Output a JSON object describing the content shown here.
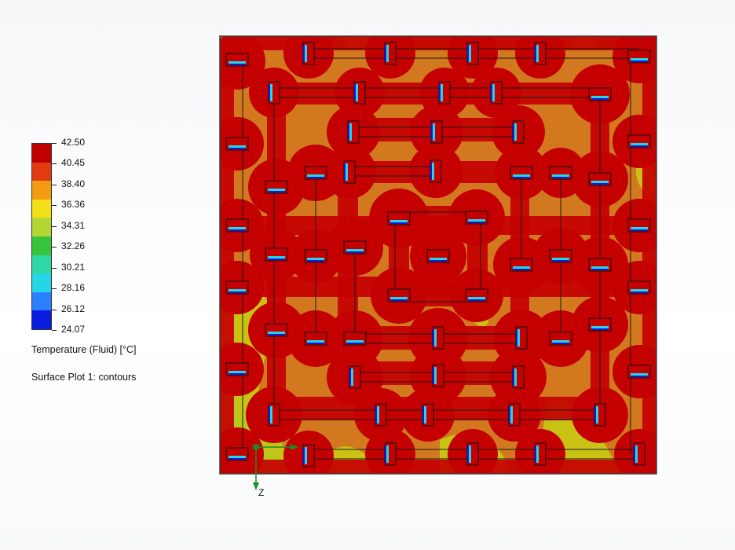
{
  "chart_data": {
    "type": "heatmap",
    "plot_kind": "surface contour plot",
    "colormap": [
      "#c00000",
      "#e23b12",
      "#f39c12",
      "#f1e01a",
      "#b4d632",
      "#38c43a",
      "#2fd6a6",
      "#25d6e6",
      "#2b80ff",
      "#0a1ce0"
    ],
    "scale": {
      "min": 24.07,
      "max": 42.5,
      "labels": [
        "42.50",
        "40.45",
        "38.40",
        "36.36",
        "34.31",
        "32.26",
        "30.21",
        "28.16",
        "26.12",
        "24.07"
      ]
    },
    "quantity_label": "Temperature (Fluid) [°C]",
    "plot_label": "Surface Plot 1: contours",
    "axes": {
      "x_label": "",
      "z_label": "Z"
    }
  },
  "colors": {
    "hot": "#c40000",
    "warm": "#d2781e",
    "mild": "#c9c214",
    "cool": "#8fcf2a",
    "frame": "#3a3a3a",
    "axis_green": "#1f8a2a"
  }
}
